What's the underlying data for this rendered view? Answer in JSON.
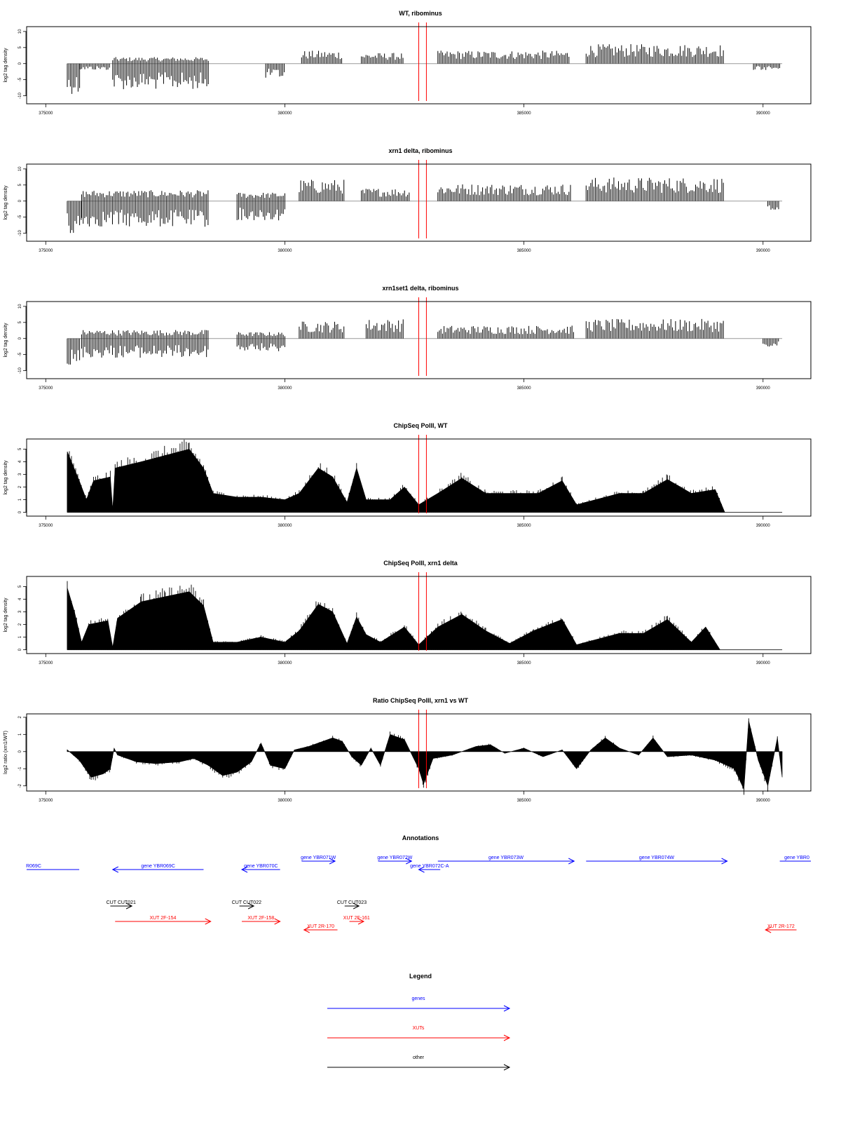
{
  "colors": {
    "data": "#000000",
    "marker": "#ff0000",
    "genes": "#0000ff",
    "xuts": "#ff0000",
    "other": "#000000",
    "baseline": "#999999"
  },
  "x_axis": {
    "ticks": [
      375000,
      380000,
      385000,
      390000
    ],
    "tick_labels": [
      "375000",
      "380000",
      "385000",
      "390000"
    ],
    "range": [
      374600,
      391000
    ]
  },
  "marker_positions": [
    382800,
    382960
  ],
  "chart_data": [
    {
      "type": "bar",
      "title": "WT, ribominus",
      "ylabel": "log2 tag density",
      "ylim": [
        -12.5,
        11.5
      ],
      "yticks": [
        -10,
        -5,
        0,
        5,
        10
      ],
      "ytick_labels": [
        "-10",
        "-5",
        "0",
        "5",
        "10"
      ],
      "x_range": [
        375450,
        390400
      ],
      "segments": [
        {
          "x0": 375450,
          "x1": 375720,
          "sign": -1,
          "level": 7
        },
        {
          "x0": 375720,
          "x1": 376350,
          "sign": -1,
          "level": 1.5
        },
        {
          "x0": 376400,
          "x1": 378400,
          "sign": -1,
          "level": 6
        },
        {
          "x0": 376400,
          "x1": 378400,
          "sign": 1,
          "level": 1.5
        },
        {
          "x0": 379600,
          "x1": 380000,
          "sign": -1,
          "level": 3.5
        },
        {
          "x0": 380350,
          "x1": 381200,
          "sign": 1,
          "level": 3
        },
        {
          "x0": 381600,
          "x1": 382500,
          "sign": 1,
          "level": 2.5
        },
        {
          "x0": 383200,
          "x1": 385950,
          "sign": 1,
          "level": 3
        },
        {
          "x0": 386300,
          "x1": 389200,
          "sign": 1,
          "level": 4.5
        },
        {
          "x0": 389800,
          "x1": 390350,
          "sign": -1,
          "level": 1.5
        }
      ]
    },
    {
      "type": "bar",
      "title": "xrn1 delta, ribominus",
      "ylabel": "log2 tag density",
      "ylim": [
        -12.5,
        11.5
      ],
      "yticks": [
        -10,
        -5,
        0,
        5,
        10
      ],
      "ytick_labels": [
        "-10",
        "-5",
        "0",
        "5",
        "10"
      ],
      "x_range": [
        375450,
        390400
      ],
      "segments": [
        {
          "x0": 375450,
          "x1": 375750,
          "sign": -1,
          "level": 8
        },
        {
          "x0": 375750,
          "x1": 378400,
          "sign": -1,
          "level": 6
        },
        {
          "x0": 375750,
          "x1": 378400,
          "sign": 1,
          "level": 2.5
        },
        {
          "x0": 379000,
          "x1": 380000,
          "sign": -1,
          "level": 4.5
        },
        {
          "x0": 379000,
          "x1": 380000,
          "sign": 1,
          "level": 2
        },
        {
          "x0": 380300,
          "x1": 381250,
          "sign": 1,
          "level": 5
        },
        {
          "x0": 381600,
          "x1": 382600,
          "sign": 1,
          "level": 3
        },
        {
          "x0": 383200,
          "x1": 386000,
          "sign": 1,
          "level": 4
        },
        {
          "x0": 386300,
          "x1": 389200,
          "sign": 1,
          "level": 5.5
        },
        {
          "x0": 390100,
          "x1": 390350,
          "sign": -1,
          "level": 2
        }
      ]
    },
    {
      "type": "bar",
      "title": "xrn1set1 delta, ribominus",
      "ylabel": "log2 tag density",
      "ylim": [
        -12.5,
        11.5
      ],
      "yticks": [
        -10,
        -5,
        0,
        5,
        10
      ],
      "ytick_labels": [
        "-10",
        "-5",
        "0",
        "5",
        "10"
      ],
      "x_range": [
        375450,
        390400
      ],
      "segments": [
        {
          "x0": 375450,
          "x1": 375720,
          "sign": -1,
          "level": 7
        },
        {
          "x0": 375750,
          "x1": 378400,
          "sign": -1,
          "level": 4.5
        },
        {
          "x0": 375750,
          "x1": 378400,
          "sign": 1,
          "level": 2
        },
        {
          "x0": 379000,
          "x1": 380000,
          "sign": -1,
          "level": 3
        },
        {
          "x0": 379000,
          "x1": 380000,
          "sign": 1,
          "level": 1.5
        },
        {
          "x0": 380300,
          "x1": 381250,
          "sign": 1,
          "level": 4
        },
        {
          "x0": 381700,
          "x1": 382500,
          "sign": 1,
          "level": 4.5
        },
        {
          "x0": 383200,
          "x1": 386050,
          "sign": 1,
          "level": 3
        },
        {
          "x0": 386300,
          "x1": 389200,
          "sign": 1,
          "level": 4.5
        },
        {
          "x0": 390000,
          "x1": 390350,
          "sign": -1,
          "level": 2
        }
      ]
    },
    {
      "type": "area",
      "title": "ChipSeq PolII, WT",
      "ylabel": "log2 tag density",
      "ylim": [
        -0.3,
        5.8
      ],
      "yticks": [
        0,
        1,
        2,
        3,
        4,
        5
      ],
      "ytick_labels": [
        "0",
        "1",
        "2",
        "3",
        "4",
        "5"
      ],
      "x_range": [
        375450,
        390400
      ],
      "profile": [
        [
          375450,
          4.8
        ],
        [
          375700,
          2.5
        ],
        [
          375850,
          1.0
        ],
        [
          376000,
          2.5
        ],
        [
          376350,
          2.8
        ],
        [
          376400,
          0.2
        ],
        [
          376450,
          3.5
        ],
        [
          377000,
          4.0
        ],
        [
          377500,
          4.5
        ],
        [
          378000,
          5.0
        ],
        [
          378300,
          3.5
        ],
        [
          378500,
          1.5
        ],
        [
          379000,
          1.2
        ],
        [
          379500,
          1.2
        ],
        [
          380000,
          1.0
        ],
        [
          380300,
          1.5
        ],
        [
          380700,
          3.5
        ],
        [
          381000,
          2.8
        ],
        [
          381300,
          0.8
        ],
        [
          381500,
          3.5
        ],
        [
          381700,
          1.0
        ],
        [
          382200,
          1.0
        ],
        [
          382500,
          2.0
        ],
        [
          382800,
          0.6
        ],
        [
          383200,
          1.5
        ],
        [
          383700,
          2.7
        ],
        [
          384200,
          1.5
        ],
        [
          384800,
          1.5
        ],
        [
          385300,
          1.5
        ],
        [
          385800,
          2.5
        ],
        [
          386100,
          0.6
        ],
        [
          386500,
          1.0
        ],
        [
          387000,
          1.5
        ],
        [
          387500,
          1.5
        ],
        [
          388000,
          2.6
        ],
        [
          388500,
          1.5
        ],
        [
          389000,
          1.8
        ],
        [
          389200,
          0.0
        ],
        [
          390400,
          0.0
        ]
      ]
    },
    {
      "type": "area",
      "title": "ChipSeq PolII, xrn1 delta",
      "ylabel": "log2 tag density",
      "ylim": [
        -0.3,
        5.8
      ],
      "yticks": [
        0,
        1,
        2,
        3,
        4,
        5
      ],
      "ytick_labels": [
        "0",
        "1",
        "2",
        "3",
        "4",
        "5"
      ],
      "x_range": [
        375450,
        390400
      ],
      "profile": [
        [
          375450,
          4.9
        ],
        [
          375600,
          3.0
        ],
        [
          375750,
          0.6
        ],
        [
          375900,
          2.0
        ],
        [
          376300,
          2.3
        ],
        [
          376400,
          0.2
        ],
        [
          376500,
          2.5
        ],
        [
          377000,
          3.8
        ],
        [
          377500,
          4.2
        ],
        [
          378000,
          4.6
        ],
        [
          378300,
          3.5
        ],
        [
          378500,
          0.6
        ],
        [
          379000,
          0.6
        ],
        [
          379500,
          1.0
        ],
        [
          380000,
          0.6
        ],
        [
          380300,
          1.5
        ],
        [
          380700,
          3.6
        ],
        [
          381000,
          3.0
        ],
        [
          381300,
          0.5
        ],
        [
          381500,
          2.6
        ],
        [
          381700,
          1.2
        ],
        [
          382000,
          0.6
        ],
        [
          382500,
          1.8
        ],
        [
          382800,
          0.4
        ],
        [
          383200,
          1.8
        ],
        [
          383700,
          2.8
        ],
        [
          384200,
          1.5
        ],
        [
          384700,
          0.5
        ],
        [
          385200,
          1.5
        ],
        [
          385800,
          2.4
        ],
        [
          386100,
          0.4
        ],
        [
          386500,
          0.8
        ],
        [
          387000,
          1.3
        ],
        [
          387500,
          1.3
        ],
        [
          388000,
          2.4
        ],
        [
          388500,
          0.6
        ],
        [
          388800,
          1.8
        ],
        [
          389100,
          0.0
        ],
        [
          390400,
          0.0
        ]
      ]
    },
    {
      "type": "area",
      "title": "Ratio ChipSeq PolII, xrn1 vs WT",
      "ylabel": "log2 ratio (xrn1/WT)",
      "ylim": [
        -2.3,
        2.2
      ],
      "yticks": [
        -2,
        -1,
        0,
        1,
        2
      ],
      "ytick_labels": [
        "-2",
        "-1",
        "0",
        "1",
        "2"
      ],
      "x_range": [
        375450,
        390400
      ],
      "profile": [
        [
          375450,
          0.1
        ],
        [
          375700,
          -0.5
        ],
        [
          375950,
          -1.5
        ],
        [
          376200,
          -1.3
        ],
        [
          376350,
          -1.0
        ],
        [
          376430,
          0.2
        ],
        [
          376500,
          -0.2
        ],
        [
          376900,
          -0.6
        ],
        [
          377300,
          -0.7
        ],
        [
          377800,
          -0.6
        ],
        [
          378100,
          -0.4
        ],
        [
          378400,
          -0.8
        ],
        [
          378700,
          -1.4
        ],
        [
          379000,
          -1.2
        ],
        [
          379300,
          -0.6
        ],
        [
          379500,
          0.5
        ],
        [
          379700,
          -0.8
        ],
        [
          380000,
          -1.0
        ],
        [
          380200,
          0.1
        ],
        [
          380500,
          0.3
        ],
        [
          381000,
          0.8
        ],
        [
          381200,
          0.6
        ],
        [
          381400,
          -0.3
        ],
        [
          381600,
          -0.8
        ],
        [
          381800,
          0.2
        ],
        [
          382000,
          -0.8
        ],
        [
          382200,
          1.0
        ],
        [
          382500,
          0.7
        ],
        [
          382800,
          -1.0
        ],
        [
          382900,
          -1.9
        ],
        [
          383100,
          -0.4
        ],
        [
          383500,
          -0.2
        ],
        [
          384000,
          0.3
        ],
        [
          384300,
          0.4
        ],
        [
          384600,
          -0.1
        ],
        [
          385000,
          0.2
        ],
        [
          385400,
          -0.3
        ],
        [
          385800,
          0.1
        ],
        [
          386100,
          -1.0
        ],
        [
          386400,
          0.1
        ],
        [
          386700,
          0.8
        ],
        [
          387000,
          0.2
        ],
        [
          387400,
          -0.2
        ],
        [
          387700,
          0.8
        ],
        [
          388000,
          -0.3
        ],
        [
          388500,
          -0.2
        ],
        [
          389000,
          -0.5
        ],
        [
          389400,
          -1.0
        ],
        [
          389600,
          -2.2
        ],
        [
          389700,
          1.8
        ],
        [
          389900,
          -0.5
        ],
        [
          390100,
          -2.0
        ],
        [
          390300,
          0.8
        ],
        [
          390400,
          -1.5
        ]
      ]
    }
  ],
  "annotations": {
    "title": "Annotations",
    "genes": [
      {
        "label": "R069C",
        "x0": 374600,
        "x1": 375700,
        "dir": "none"
      },
      {
        "label": "gene YBR069C",
        "x0": 376400,
        "x1": 378300,
        "dir": "left"
      },
      {
        "label": "gene YBR070C",
        "x0": 379100,
        "x1": 379900,
        "dir": "left"
      },
      {
        "label": "gene YBR071W",
        "x0": 380350,
        "x1": 381050,
        "dir": "right"
      },
      {
        "label": "gene YBR072W",
        "x0": 381950,
        "x1": 382650,
        "dir": "right"
      },
      {
        "label": "gene YBR072C-A",
        "x0": 382800,
        "x1": 383250,
        "dir": "left"
      },
      {
        "label": "gene YBR073W",
        "x0": 383200,
        "x1": 386050,
        "dir": "right"
      },
      {
        "label": "gene YBR074W",
        "x0": 386300,
        "x1": 389250,
        "dir": "right"
      },
      {
        "label": "gene YBR0",
        "x0": 390350,
        "x1": 391000,
        "dir": "none"
      }
    ],
    "other": [
      {
        "label": "CUT CUT021",
        "x0": 376350,
        "x1": 376800,
        "dir": "right"
      },
      {
        "label": "CUT CUT022",
        "x0": 379050,
        "x1": 379350,
        "dir": "right"
      },
      {
        "label": "CUT CUT023",
        "x0": 381250,
        "x1": 381550,
        "dir": "right"
      }
    ],
    "xuts": [
      {
        "label": "XUT 2F-154",
        "x0": 376450,
        "x1": 378450,
        "dir": "right"
      },
      {
        "label": "XUT 2F-158",
        "x0": 379100,
        "x1": 379900,
        "dir": "right"
      },
      {
        "label": "XUT 2R-170",
        "x0": 380400,
        "x1": 381100,
        "dir": "left"
      },
      {
        "label": "XUT 2F-161",
        "x0": 381350,
        "x1": 381650,
        "dir": "right"
      },
      {
        "label": "XUT 2R-172",
        "x0": 390050,
        "x1": 390700,
        "dir": "left"
      }
    ]
  },
  "legend": {
    "title": "Legend",
    "items": [
      {
        "label": "genes",
        "color": "#0000ff"
      },
      {
        "label": "XUTs",
        "color": "#ff0000"
      },
      {
        "label": "other",
        "color": "#000000"
      }
    ]
  }
}
